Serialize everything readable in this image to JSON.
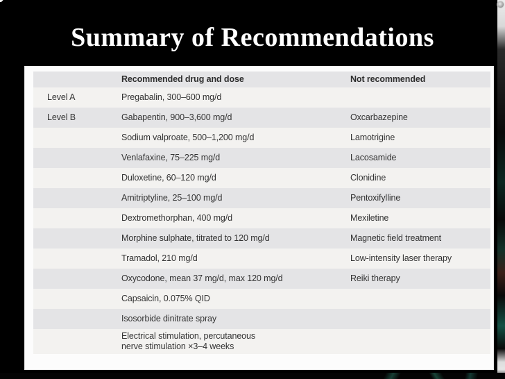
{
  "slide": {
    "title": "Summary of Recommendations"
  },
  "table": {
    "columns": [
      "",
      "Recommended drug and dose",
      "Not recommended"
    ],
    "rows": [
      {
        "level": "Level A",
        "drug": "Pregabalin, 300–600 mg/d",
        "not_recommended": ""
      },
      {
        "level": "Level B",
        "drug": "Gabapentin, 900–3,600 mg/d",
        "not_recommended": "Oxcarbazepine"
      },
      {
        "level": "",
        "drug": "Sodium valproate, 500–1,200 mg/d",
        "not_recommended": "Lamotrigine"
      },
      {
        "level": "",
        "drug": "Venlafaxine, 75–225 mg/d",
        "not_recommended": "Lacosamide"
      },
      {
        "level": "",
        "drug": "Duloxetine, 60–120 mg/d",
        "not_recommended": "Clonidine"
      },
      {
        "level": "",
        "drug": "Amitriptyline, 25–100 mg/d",
        "not_recommended": "Pentoxifylline"
      },
      {
        "level": "",
        "drug": "Dextromethorphan, 400 mg/d",
        "not_recommended": "Mexiletine"
      },
      {
        "level": "",
        "drug": "Morphine sulphate, titrated to 120 mg/d",
        "not_recommended": "Magnetic field treatment"
      },
      {
        "level": "",
        "drug": "Tramadol, 210 mg/d",
        "not_recommended": "Low-intensity laser therapy"
      },
      {
        "level": "",
        "drug": "Oxycodone, mean 37 mg/d, max 120 mg/d",
        "not_recommended": "Reiki therapy"
      },
      {
        "level": "",
        "drug": "Capsaicin, 0.075% QID",
        "not_recommended": ""
      },
      {
        "level": "",
        "drug": "Isosorbide dinitrate spray",
        "not_recommended": ""
      },
      {
        "level": "",
        "drug": "Electrical stimulation, percutaneous\nnerve stimulation ×3–4 weeks",
        "not_recommended": ""
      }
    ]
  },
  "colors": {
    "slide_background": "#000000",
    "panel_background": "#fcfcfc",
    "row_light": "#f3f2f0",
    "row_gray": "#e4e4e6",
    "header_gray": "#e4e4e6",
    "table_text": "#333333",
    "title_text": "#ffffff",
    "accent_teal": "#16443c"
  }
}
